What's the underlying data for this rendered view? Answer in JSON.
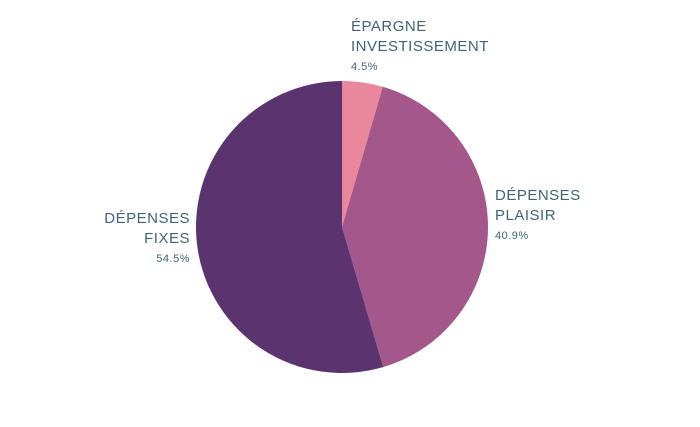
{
  "chart_data": {
    "type": "pie",
    "title": "",
    "slices": [
      {
        "label_line1": "ÉPARGNE",
        "label_line2": "INVESTISSEMENT",
        "value_label": "4.5%",
        "value": 4.5,
        "color": "#e9879c"
      },
      {
        "label_line1": "DÉPENSES",
        "label_line2": "PLAISIR",
        "value_label": "40.9%",
        "value": 40.9,
        "color": "#a4578a"
      },
      {
        "label_line1": "DÉPENSES",
        "label_line2": "FIXES",
        "value_label": "54.5%",
        "value": 54.5,
        "color": "#5b336e"
      }
    ],
    "label_color": "#3f6474",
    "start": "top",
    "direction": "clockwise"
  }
}
